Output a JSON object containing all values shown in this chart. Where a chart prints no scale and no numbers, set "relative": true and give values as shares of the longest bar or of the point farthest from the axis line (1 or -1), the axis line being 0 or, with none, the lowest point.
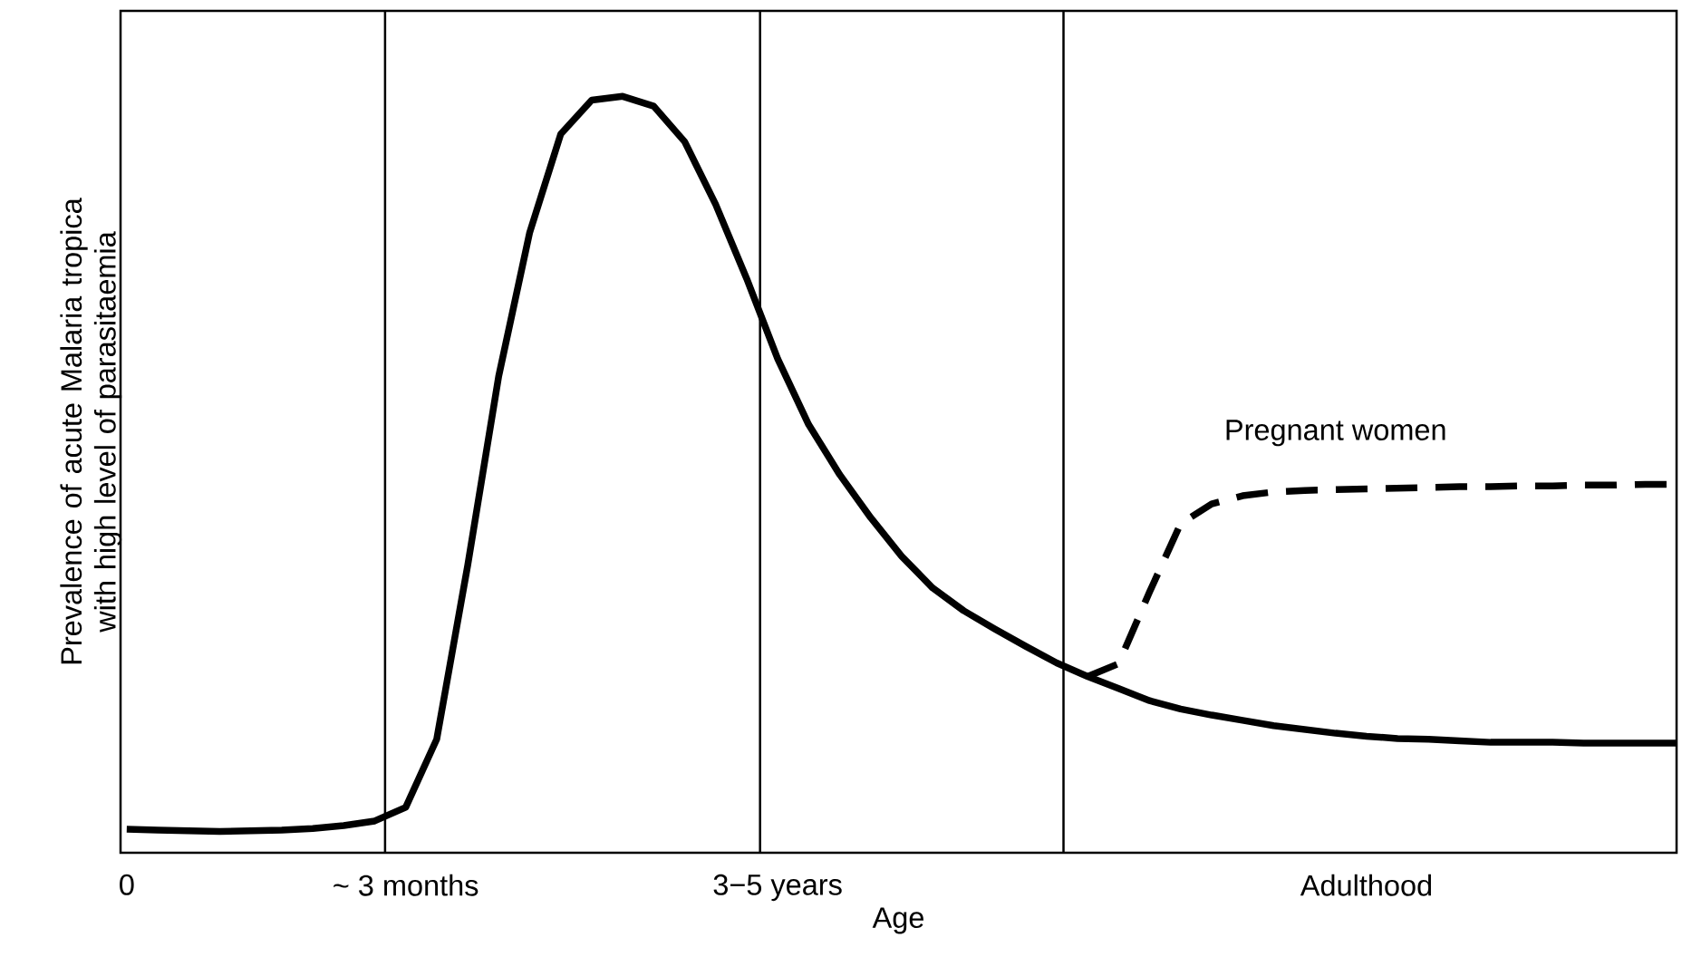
{
  "chart_data": {
    "type": "line",
    "relative": true,
    "xlabel": "Age",
    "ylabel": "Prevalence of acute Malaria tropica with high level of parasitaemia",
    "categories": [
      "0",
      null,
      null,
      null,
      null,
      null,
      null,
      null,
      null,
      "~ 3 months",
      null,
      null,
      null,
      null,
      null,
      null,
      null,
      null,
      null,
      null,
      null,
      "3−5 years",
      null,
      null,
      null,
      null,
      null,
      null,
      null,
      null,
      null,
      null,
      null,
      null,
      null,
      null,
      null,
      null,
      null,
      null,
      "Adulthood",
      null,
      null,
      null,
      null,
      null,
      null,
      null,
      null,
      null,
      null
    ],
    "series": [
      {
        "color": "#000000",
        "line_style": "solid",
        "values": [
          0.031,
          0.03,
          0.029,
          0.028,
          0.029,
          0.03,
          0.032,
          0.036,
          0.042,
          0.06,
          0.15,
          0.38,
          0.63,
          0.82,
          0.95,
          0.995,
          1.0,
          0.987,
          0.94,
          0.857,
          0.759,
          0.653,
          0.566,
          0.5,
          0.443,
          0.392,
          0.35,
          0.32,
          0.296,
          0.273,
          0.251,
          0.233,
          0.217,
          0.201,
          0.19,
          0.182,
          0.175,
          0.168,
          0.163,
          0.158,
          0.154,
          0.151,
          0.15,
          0.148,
          0.146,
          0.146,
          0.146,
          0.145,
          0.145,
          0.145,
          0.145
        ]
      },
      {
        "name": "Pregnant women",
        "color": "#000000",
        "line_style": "dashed",
        "values": [
          null,
          null,
          null,
          null,
          null,
          null,
          null,
          null,
          null,
          null,
          null,
          null,
          null,
          null,
          null,
          null,
          null,
          null,
          null,
          null,
          null,
          null,
          null,
          null,
          null,
          null,
          null,
          null,
          null,
          null,
          null,
          0.233,
          0.25,
          0.345,
          0.435,
          0.461,
          0.472,
          0.477,
          0.479,
          0.48,
          0.481,
          0.482,
          0.483,
          0.484,
          0.484,
          0.485,
          0.485,
          0.486,
          0.486,
          0.487,
          0.487
        ]
      }
    ]
  }
}
